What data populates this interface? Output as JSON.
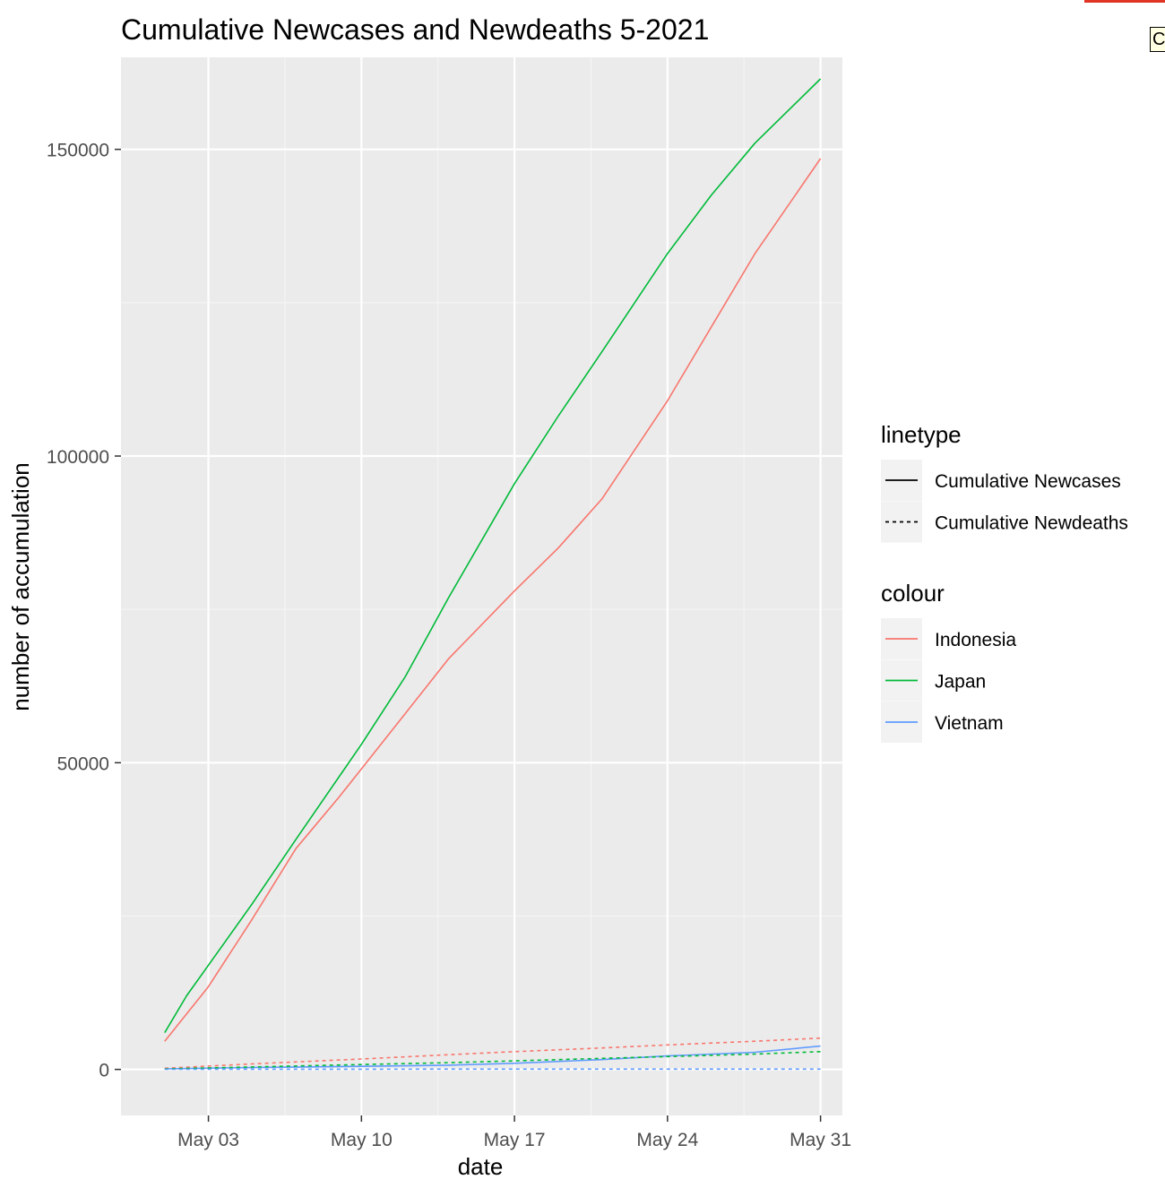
{
  "chart_data": {
    "type": "line",
    "title": "Cumulative Newcases and Newdeaths 5-2021",
    "xlabel": "date",
    "ylabel": "number of accumulation",
    "x_range": [
      "2021-04-29",
      "2021-06-01"
    ],
    "ylim": [
      -7500,
      165000
    ],
    "x_ticks": [
      {
        "date": "2021-05-03",
        "label": "May 03"
      },
      {
        "date": "2021-05-10",
        "label": "May 10"
      },
      {
        "date": "2021-05-17",
        "label": "May 17"
      },
      {
        "date": "2021-05-24",
        "label": "May 24"
      },
      {
        "date": "2021-05-31",
        "label": "May 31"
      }
    ],
    "y_ticks": [
      {
        "value": 0,
        "label": "0"
      },
      {
        "value": 50000,
        "label": "50000"
      },
      {
        "value": 100000,
        "label": "100000"
      },
      {
        "value": 150000,
        "label": "150000"
      }
    ],
    "grid": true,
    "legend_position": "right",
    "legends": [
      {
        "title": "linetype",
        "items": [
          {
            "label": "Cumulative Newcases",
            "linetype": "solid",
            "color": "#000000"
          },
          {
            "label": "Cumulative Newdeaths",
            "linetype": "dotted",
            "color": "#000000"
          }
        ]
      },
      {
        "title": "colour",
        "items": [
          {
            "label": "Indonesia",
            "linetype": "solid",
            "color": "#F8766D"
          },
          {
            "label": "Japan",
            "linetype": "solid",
            "color": "#00BA38"
          },
          {
            "label": "Vietnam",
            "linetype": "solid",
            "color": "#619CFF"
          }
        ]
      }
    ],
    "series": [
      {
        "country": "Indonesia",
        "measure": "Cumulative Newcases",
        "color": "#F8766D",
        "linetype": "solid",
        "points": [
          [
            "2021-05-01",
            4600
          ],
          [
            "2021-05-03",
            13500
          ],
          [
            "2021-05-05",
            24500
          ],
          [
            "2021-05-07",
            36000
          ],
          [
            "2021-05-09",
            44500
          ],
          [
            "2021-05-10",
            49000
          ],
          [
            "2021-05-12",
            58000
          ],
          [
            "2021-05-14",
            67000
          ],
          [
            "2021-05-17",
            78000
          ],
          [
            "2021-05-19",
            85000
          ],
          [
            "2021-05-21",
            93000
          ],
          [
            "2021-05-24",
            109000
          ],
          [
            "2021-05-26",
            121000
          ],
          [
            "2021-05-28",
            133000
          ],
          [
            "2021-05-31",
            148500
          ]
        ]
      },
      {
        "country": "Japan",
        "measure": "Cumulative Newcases",
        "color": "#00BA38",
        "linetype": "solid",
        "points": [
          [
            "2021-05-01",
            6000
          ],
          [
            "2021-05-02",
            12000
          ],
          [
            "2021-05-03",
            17000
          ],
          [
            "2021-05-05",
            27000
          ],
          [
            "2021-05-07",
            37500
          ],
          [
            "2021-05-10",
            53000
          ],
          [
            "2021-05-12",
            64000
          ],
          [
            "2021-05-14",
            77000
          ],
          [
            "2021-05-17",
            95500
          ],
          [
            "2021-05-19",
            106500
          ],
          [
            "2021-05-21",
            117000
          ],
          [
            "2021-05-24",
            133000
          ],
          [
            "2021-05-26",
            142500
          ],
          [
            "2021-05-28",
            151000
          ],
          [
            "2021-05-31",
            161500
          ]
        ]
      },
      {
        "country": "Vietnam",
        "measure": "Cumulative Newcases",
        "color": "#619CFF",
        "linetype": "solid",
        "points": [
          [
            "2021-05-01",
            100
          ],
          [
            "2021-05-05",
            300
          ],
          [
            "2021-05-10",
            500
          ],
          [
            "2021-05-14",
            700
          ],
          [
            "2021-05-17",
            1000
          ],
          [
            "2021-05-21",
            1600
          ],
          [
            "2021-05-24",
            2200
          ],
          [
            "2021-05-28",
            2800
          ],
          [
            "2021-05-31",
            3800
          ]
        ]
      },
      {
        "country": "Indonesia",
        "measure": "Cumulative Newdeaths",
        "color": "#F8766D",
        "linetype": "dotted",
        "points": [
          [
            "2021-05-01",
            200
          ],
          [
            "2021-05-05",
            900
          ],
          [
            "2021-05-10",
            1700
          ],
          [
            "2021-05-14",
            2400
          ],
          [
            "2021-05-17",
            2900
          ],
          [
            "2021-05-21",
            3500
          ],
          [
            "2021-05-24",
            4000
          ],
          [
            "2021-05-28",
            4600
          ],
          [
            "2021-05-31",
            5100
          ]
        ]
      },
      {
        "country": "Japan",
        "measure": "Cumulative Newdeaths",
        "color": "#00BA38",
        "linetype": "dotted",
        "points": [
          [
            "2021-05-01",
            100
          ],
          [
            "2021-05-05",
            400
          ],
          [
            "2021-05-10",
            800
          ],
          [
            "2021-05-14",
            1100
          ],
          [
            "2021-05-17",
            1400
          ],
          [
            "2021-05-21",
            1800
          ],
          [
            "2021-05-24",
            2100
          ],
          [
            "2021-05-28",
            2500
          ],
          [
            "2021-05-31",
            2900
          ]
        ]
      },
      {
        "country": "Vietnam",
        "measure": "Cumulative Newdeaths",
        "color": "#619CFF",
        "linetype": "dotted",
        "points": [
          [
            "2021-05-01",
            35
          ],
          [
            "2021-05-10",
            40
          ],
          [
            "2021-05-17",
            45
          ],
          [
            "2021-05-24",
            50
          ],
          [
            "2021-05-31",
            55
          ]
        ]
      }
    ]
  },
  "overlay": {
    "tooltip_text": "C"
  }
}
